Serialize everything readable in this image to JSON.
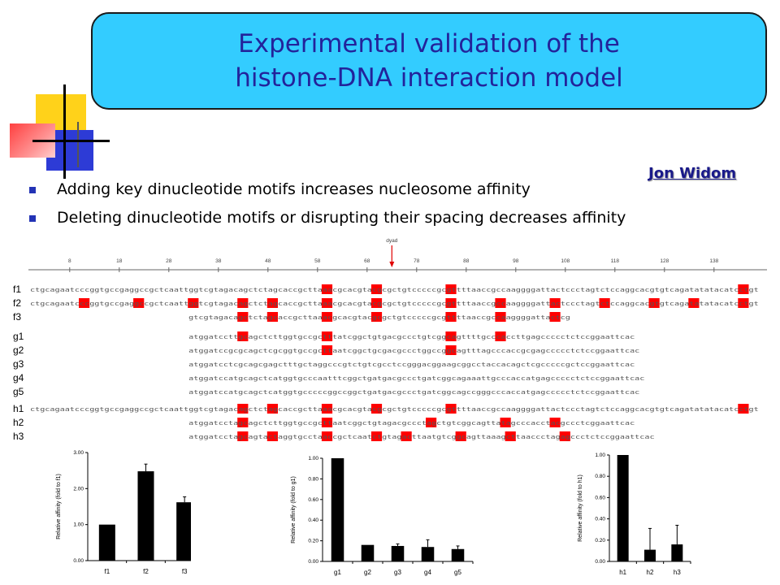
{
  "title": {
    "line1": "Experimental validation of the",
    "line2": "histone-DNA interaction model"
  },
  "author": "Jon Widom",
  "bullets": [
    "Adding key dinucleotide motifs increases nucleosome affinity",
    "Deleting dinucleotide motifs or disrupting their spacing decreases affinity"
  ],
  "colors": {
    "title_box": "#33ccff",
    "title_text": "#23239b",
    "bullet_marker": "#2333b5",
    "motif_highlight": "#ff0000"
  },
  "sequence_figure": {
    "dyad_label": "dyad",
    "ruler_ticks": [
      "8",
      "18",
      "28",
      "38",
      "48",
      "58",
      "68",
      "78",
      "88",
      "98",
      "108",
      "118",
      "128",
      "138"
    ],
    "rows": [
      {
        "label": "f1",
        "seq": "ctgcagaatcccggtgccgaggccgctcaattggtcgtagacagctctagcaccgcttaaacgcacgtacgcgctgtcccccgcgttttaaccgccaaggggattactccctagtctccaggcacgtgtcagatatatacatcctgt",
        "start": 0,
        "hl": [
          59,
          69,
          84,
          143
        ]
      },
      {
        "label": "f2",
        "seq": "ctgcagaatcccggtgccgaggccgctcaattggtcgtagacagctctagcaccgcttaaacgcacgtacgcgctgtcccccgcgttttaaccgccaaggggattactccctagtctccaggcacgtgtcagatatatacatcctgt",
        "start": 0,
        "hl": [
          10,
          21,
          32,
          42,
          48,
          59,
          69,
          84,
          94,
          105,
          115,
          125,
          133,
          143
        ]
      },
      {
        "label": "f3",
        "seq": "gtcgtagacagctctagcaccgcttaaacgcacgtacgcgctgtcccccgcgttttaaccgccaaggggattactcg",
        "start": 32,
        "hl": [
          42,
          48,
          59,
          69,
          84,
          94,
          105
        ]
      },
      {
        "label": "g1",
        "seq": "atggatccttgcagctcttggtgccgctttatcggctgtgacgccctgtcggcagttttgcccaccttgagccccctctccggaattcac",
        "start": 32,
        "hl": [
          42,
          59,
          84,
          94
        ]
      },
      {
        "label": "g2",
        "seq": "atggatccgcgcagctcgcggtgccgcttaatcggctgcgacgccctggccggcagtttagcccaccgcgagccccctctccggaattcac",
        "start": 32,
        "hl": [
          59,
          84
        ]
      },
      {
        "label": "g3",
        "seq": "atggatcctcgcagcgagctttgctaggcccgtctgtcgcctccgggacggaagcggcctaccacagctcgcccccgctccggaattcac",
        "start": 32,
        "hl": []
      },
      {
        "label": "g4",
        "seq": "atggatccatgcagctcatggtgcccaatttcggctgatgacgccctgatcggcagaaattgcccaccatgagccccctctccggaattcac",
        "start": 32,
        "hl": []
      },
      {
        "label": "g5",
        "seq": "atggatccatgcagctcatggtgcccccggccggctgatgacgccctgatcggcagccgggcccaccatgagccccctctccggaattcac",
        "start": 32,
        "hl": []
      },
      {
        "label": "h1",
        "seq": "ctgcagaatcccggtgccgaggccgctcaattggtcgtagacagctctagcaccgcttaaacgcacgtacgcgctgtcccccgcgttttaaccgccaaggggattactccctagtctccaggcacgtgtcagatatatacatcctgt",
        "start": 0,
        "hl": [
          42,
          48,
          59,
          69,
          84,
          143
        ]
      },
      {
        "label": "h2",
        "seq": "atggatcctagcagctcttggtgccgcttaatcggctgtagacgccctagctgtcggcagttatagcccacctacgccctcggaattcac",
        "start": 32,
        "hl": [
          42,
          59,
          80,
          95,
          105
        ]
      },
      {
        "label": "h3",
        "seq": "atggatcctagcagtactaggtgcctaaccgctcaatctgtagacttaatgtcggcagttaaagcttaaccctagagccctctccggaattcac",
        "start": 32,
        "hl": [
          42,
          48,
          59,
          69,
          75,
          86,
          96,
          107
        ]
      }
    ]
  },
  "charts": [
    {
      "ylabel": "Relative affinity (fold to f1)",
      "ylim": [
        0,
        3
      ],
      "yticks": [
        "0.00",
        "1.00",
        "2.00",
        "3.00"
      ],
      "yticks_values": [
        0,
        1,
        2,
        3
      ],
      "categories": [
        "f1",
        "f2",
        "f3"
      ],
      "values": [
        1.0,
        2.48,
        1.62
      ],
      "errors": [
        0.0,
        0.2,
        0.15
      ]
    },
    {
      "ylabel": "Relative affinity (fold to g1)",
      "ylim": [
        0,
        1
      ],
      "yticks": [
        "0.00",
        "0.20",
        "0.40",
        "0.60",
        "0.80",
        "1.00"
      ],
      "yticks_values": [
        0,
        0.2,
        0.4,
        0.6,
        0.8,
        1.0
      ],
      "categories": [
        "g1",
        "g2",
        "g3",
        "g4",
        "g5"
      ],
      "values": [
        1.0,
        0.16,
        0.15,
        0.14,
        0.12
      ],
      "errors": [
        0.0,
        0.0,
        0.02,
        0.07,
        0.03
      ]
    },
    {
      "ylabel": "Relative affinity (fold to h1)",
      "ylim": [
        0,
        1
      ],
      "yticks": [
        "0.00",
        "0.20",
        "0.40",
        "0.60",
        "0.80",
        "1.00"
      ],
      "yticks_values": [
        0,
        0.2,
        0.4,
        0.6,
        0.8,
        1.0
      ],
      "categories": [
        "h1",
        "h2",
        "h3"
      ],
      "values": [
        1.0,
        0.11,
        0.16
      ],
      "errors": [
        0.0,
        0.2,
        0.18
      ]
    }
  ]
}
